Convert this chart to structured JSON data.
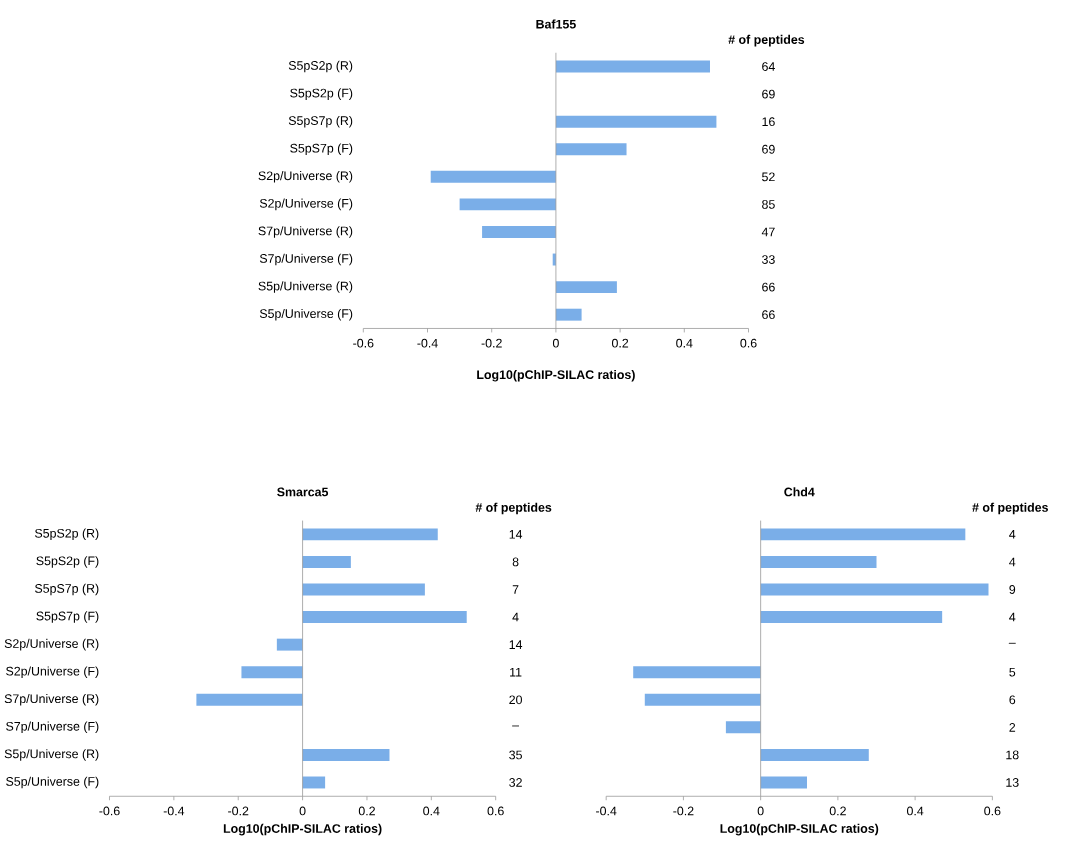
{
  "chart_data": [
    {
      "type": "bar",
      "orientation": "horizontal",
      "title": "Baf155",
      "xlabel": "Log10(pChIP-SILAC ratios)",
      "color": "#7aaee8",
      "categories": [
        "S5pS2p (R)",
        "S5pS2p (F)",
        "S5pS7p (R)",
        "S5pS7p (F)",
        "S2p/Universe (R)",
        "S2p/Universe (F)",
        "S7p/Universe (R)",
        "S7p/Universe (F)",
        "S5p/Universe (R)",
        "S5p/Universe (F)"
      ],
      "values": [
        0.48,
        null,
        0.5,
        0.22,
        -0.39,
        -0.3,
        -0.23,
        -0.01,
        0.19,
        0.08
      ],
      "xlim": [
        -0.6,
        0.6
      ],
      "xticks": [
        -0.6,
        -0.4,
        -0.2,
        0,
        0.2,
        0.4,
        0.6
      ],
      "annotations": [
        "# of peptides",
        "64",
        "69",
        "16",
        "69",
        "52",
        "85",
        "47",
        "33",
        "66",
        "66"
      ]
    },
    {
      "type": "bar",
      "orientation": "horizontal",
      "title": "Smarca5",
      "xlabel": "Log10(pChIP-SILAC ratios)",
      "color": "#7aaee8",
      "categories": [
        "S5pS2p (R)",
        "S5pS2p (F)",
        "S5pS7p (R)",
        "S5pS7p (F)",
        "S2p/Universe (R)",
        "S2p/Universe (F)",
        "S7p/Universe (R)",
        "S7p/Universe (F)",
        "S5p/Universe (R)",
        "S5p/Universe (F)"
      ],
      "values": [
        0.42,
        0.15,
        0.38,
        0.51,
        -0.08,
        -0.19,
        -0.33,
        null,
        0.27,
        0.07
      ],
      "xlim": [
        -0.6,
        0.6
      ],
      "xticks": [
        -0.6,
        -0.4,
        -0.2,
        0,
        0.2,
        0.4,
        0.6
      ],
      "annotations": [
        "# of peptides",
        "14",
        "8",
        "7",
        "4",
        "14",
        "11",
        "20",
        "–",
        "35",
        "32"
      ]
    },
    {
      "type": "bar",
      "orientation": "horizontal",
      "title": "Chd4",
      "xlabel": "Log10(pChIP-SILAC ratios)",
      "color": "#7aaee8",
      "values": [
        0.53,
        0.3,
        0.59,
        0.47,
        null,
        -0.33,
        -0.3,
        -0.09,
        0.28,
        0.12
      ],
      "categories": [
        null,
        null,
        null,
        null,
        null,
        null,
        null,
        null,
        null,
        null
      ],
      "xlim": [
        -0.4,
        0.6
      ],
      "xticks": [
        -0.4,
        -0.2,
        0,
        0.2,
        0.4,
        0.6
      ],
      "tick_labels": "x",
      "annotations": [
        "# of peptides",
        "4",
        "4",
        "9",
        "4",
        "–",
        "5",
        "6",
        "2",
        "18",
        "13"
      ]
    }
  ]
}
